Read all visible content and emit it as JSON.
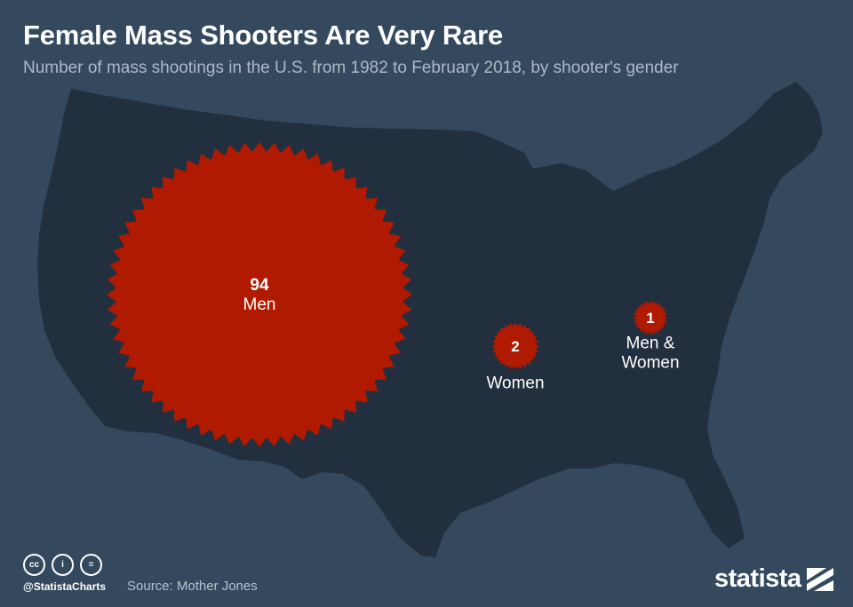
{
  "title": "Female Mass Shooters Are Very Rare",
  "subtitle": "Number of mass shootings in the U.S. from 1982 to February 2018, by shooter's gender",
  "chart_data": {
    "type": "bubble",
    "title": "Female Mass Shooters Are Very Rare",
    "subtitle": "Number of mass shootings in the U.S. from 1982 to February 2018, by shooter's gender",
    "background_map": "United States",
    "series": [
      {
        "name": "Men",
        "value": 94,
        "label_lines": [
          "Men"
        ]
      },
      {
        "name": "Women",
        "value": 2,
        "label_lines": [
          "Women"
        ]
      },
      {
        "name": "Men & Women",
        "value": 1,
        "label_lines": [
          "Men &",
          "Women"
        ]
      }
    ],
    "colors": {
      "bubble": "#b01a00",
      "map": "#222f3e",
      "background": "#34495e"
    }
  },
  "footer": {
    "handle": "@StatistaCharts",
    "source": "Source: Mother Jones",
    "license_icons": [
      "cc-icon",
      "by-icon",
      "nd-icon"
    ],
    "license_glyphs": [
      "cc",
      "i",
      "="
    ],
    "brand": "statista"
  }
}
